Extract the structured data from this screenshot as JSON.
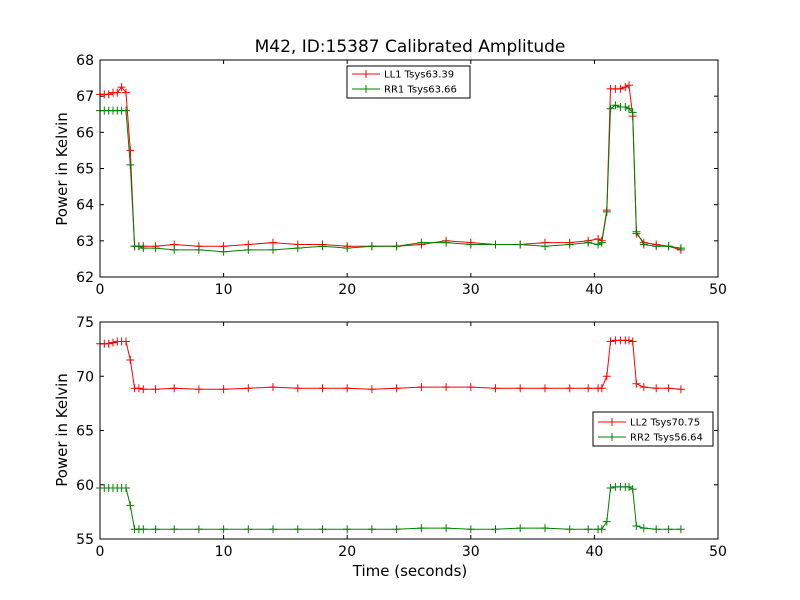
{
  "chart_data": [
    {
      "type": "line",
      "title": "M42, ID:15387 Calibrated Amplitude",
      "xlabel": "",
      "ylabel": "Power in Kelvin",
      "xlim": [
        0,
        50
      ],
      "ylim": [
        62,
        68
      ],
      "xticks": [
        "0",
        "10",
        "20",
        "30",
        "40",
        "50"
      ],
      "yticks": [
        "62",
        "63",
        "64",
        "65",
        "66",
        "67",
        "68"
      ],
      "grid": false,
      "legend_position": "top-center",
      "series": [
        {
          "name": "LL1 Tsys63.39",
          "color": "#ff0000",
          "marker": "plus",
          "x": [
            0,
            0.35,
            0.7,
            1.05,
            1.4,
            1.75,
            2.1,
            2.45,
            2.8,
            3.15,
            3.5,
            4.5,
            6,
            8,
            10,
            12,
            14,
            16,
            18,
            20,
            22,
            24,
            26,
            28,
            30,
            32,
            34,
            36,
            38,
            39.5,
            40.3,
            40.6,
            41.0,
            41.3,
            41.7,
            42.1,
            42.5,
            42.8,
            43.1,
            43.4,
            44,
            45,
            46,
            47
          ],
          "y": [
            67.05,
            67.05,
            67.05,
            67.1,
            67.1,
            67.25,
            67.1,
            65.5,
            62.85,
            62.85,
            62.85,
            62.85,
            62.9,
            62.85,
            62.85,
            62.9,
            62.95,
            62.9,
            62.9,
            62.85,
            62.85,
            62.85,
            62.9,
            63.0,
            62.95,
            62.9,
            62.9,
            62.95,
            62.95,
            63.0,
            63.05,
            63.0,
            63.85,
            67.2,
            67.2,
            67.2,
            67.25,
            67.3,
            66.45,
            63.2,
            62.95,
            62.9,
            62.85,
            62.75
          ]
        },
        {
          "name": "RR1 Tsys63.66",
          "color": "#008000",
          "marker": "plus",
          "x": [
            0,
            0.35,
            0.7,
            1.05,
            1.4,
            1.75,
            2.1,
            2.45,
            2.8,
            3.15,
            3.5,
            4.5,
            6,
            8,
            10,
            12,
            14,
            16,
            18,
            20,
            22,
            24,
            26,
            28,
            30,
            32,
            34,
            36,
            38,
            39.5,
            40.3,
            40.6,
            41.0,
            41.3,
            41.7,
            42.1,
            42.5,
            42.8,
            43.1,
            43.4,
            44,
            45,
            46,
            47
          ],
          "y": [
            66.6,
            66.6,
            66.6,
            66.6,
            66.6,
            66.6,
            66.6,
            65.1,
            62.85,
            62.85,
            62.8,
            62.8,
            62.75,
            62.75,
            62.7,
            62.75,
            62.75,
            62.8,
            62.85,
            62.8,
            62.85,
            62.85,
            62.95,
            62.95,
            62.9,
            62.9,
            62.9,
            62.85,
            62.9,
            62.95,
            62.9,
            62.95,
            63.8,
            66.65,
            66.75,
            66.7,
            66.7,
            66.65,
            66.55,
            63.25,
            62.9,
            62.85,
            62.85,
            62.8
          ]
        }
      ]
    },
    {
      "type": "line",
      "title": "",
      "xlabel": "Time (seconds)",
      "ylabel": "Power in Kelvin",
      "xlim": [
        0,
        50
      ],
      "ylim": [
        55,
        75
      ],
      "xticks": [
        "0",
        "10",
        "20",
        "30",
        "40",
        "50"
      ],
      "yticks": [
        "55",
        "60",
        "65",
        "70",
        "75"
      ],
      "grid": false,
      "legend_position": "center-right",
      "series": [
        {
          "name": "LL2 Tsys70.75",
          "color": "#ff0000",
          "marker": "plus",
          "x": [
            0,
            0.35,
            0.7,
            1.05,
            1.4,
            1.75,
            2.1,
            2.45,
            2.8,
            3.15,
            3.5,
            4.5,
            6,
            8,
            10,
            12,
            14,
            16,
            18,
            20,
            22,
            24,
            26,
            28,
            30,
            32,
            34,
            36,
            38,
            39.5,
            40.3,
            40.6,
            41.0,
            41.3,
            41.7,
            42.1,
            42.5,
            42.8,
            43.1,
            43.4,
            44,
            45,
            46,
            47
          ],
          "y": [
            73.0,
            73.0,
            73.0,
            73.1,
            73.2,
            73.2,
            73.2,
            71.5,
            68.9,
            68.9,
            68.8,
            68.8,
            68.9,
            68.8,
            68.8,
            68.9,
            69.0,
            68.9,
            68.9,
            68.9,
            68.8,
            68.9,
            69.0,
            69.0,
            69.0,
            68.9,
            68.9,
            68.9,
            68.9,
            68.9,
            68.9,
            68.9,
            70.0,
            73.2,
            73.3,
            73.3,
            73.3,
            73.3,
            73.2,
            69.3,
            69.0,
            68.9,
            68.9,
            68.8
          ]
        },
        {
          "name": "RR2 Tsys56.64",
          "color": "#008000",
          "marker": "plus",
          "x": [
            0,
            0.35,
            0.7,
            1.05,
            1.4,
            1.75,
            2.1,
            2.45,
            2.8,
            3.15,
            3.5,
            4.5,
            6,
            8,
            10,
            12,
            14,
            16,
            18,
            20,
            22,
            24,
            26,
            28,
            30,
            32,
            34,
            36,
            38,
            39.5,
            40.3,
            40.6,
            41.0,
            41.3,
            41.7,
            42.1,
            42.5,
            42.8,
            43.1,
            43.4,
            44,
            45,
            46,
            47
          ],
          "y": [
            59.7,
            59.7,
            59.7,
            59.7,
            59.7,
            59.7,
            59.7,
            58.1,
            55.9,
            55.9,
            55.9,
            55.9,
            55.9,
            55.9,
            55.9,
            55.9,
            55.9,
            55.9,
            55.9,
            55.9,
            55.9,
            55.9,
            56.0,
            56.0,
            55.9,
            55.9,
            56.0,
            56.0,
            55.9,
            55.9,
            55.9,
            55.9,
            56.6,
            59.7,
            59.8,
            59.8,
            59.8,
            59.8,
            59.6,
            56.2,
            56.0,
            55.9,
            55.9,
            55.9
          ]
        }
      ]
    }
  ]
}
